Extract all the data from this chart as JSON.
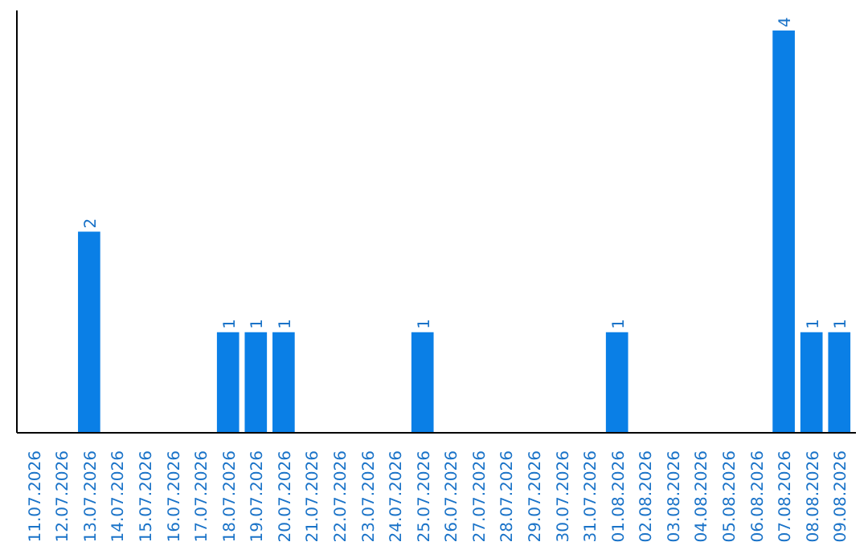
{
  "chart_data": {
    "type": "bar",
    "categories": [
      "11.07.2026",
      "12.07.2026",
      "13.07.2026",
      "14.07.2026",
      "15.07.2026",
      "16.07.2026",
      "17.07.2026",
      "18.07.2026",
      "19.07.2026",
      "20.07.2026",
      "21.07.2026",
      "22.07.2026",
      "23.07.2026",
      "24.07.2026",
      "25.07.2026",
      "26.07.2026",
      "27.07.2026",
      "28.07.2026",
      "29.07.2026",
      "30.07.2026",
      "31.07.2026",
      "01.08.2026",
      "02.08.2026",
      "03.08.2026",
      "04.08.2026",
      "05.08.2026",
      "06.08.2026",
      "07.08.2026",
      "08.08.2026",
      "09.08.2026"
    ],
    "values": [
      0,
      0,
      2,
      0,
      0,
      0,
      0,
      1,
      1,
      1,
      0,
      0,
      0,
      0,
      1,
      0,
      0,
      0,
      0,
      0,
      0,
      1,
      0,
      0,
      0,
      0,
      0,
      4,
      1,
      1
    ],
    "value_labels": [
      null,
      null,
      "2",
      null,
      null,
      null,
      null,
      "1",
      "1",
      "1",
      null,
      null,
      null,
      null,
      "1",
      null,
      null,
      null,
      null,
      null,
      null,
      "1",
      null,
      null,
      null,
      null,
      null,
      "4",
      "1",
      "1"
    ],
    "color": "#0a7fe6",
    "ylim": [
      0,
      4.2
    ],
    "grid": false
  }
}
